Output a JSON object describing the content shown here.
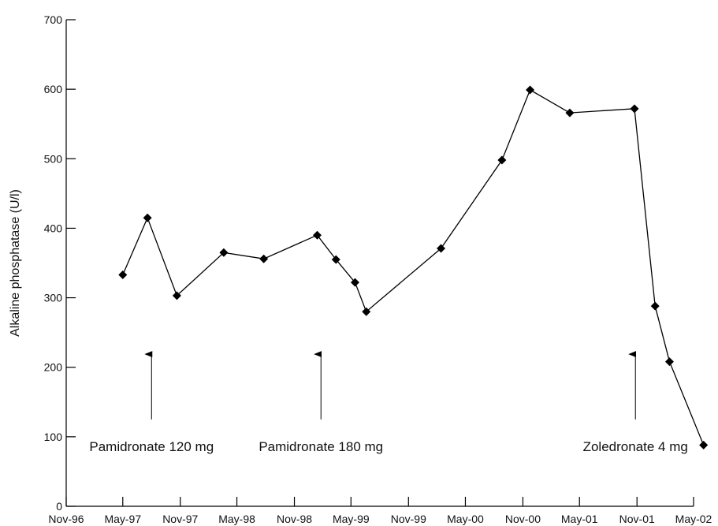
{
  "chart_data": {
    "type": "line",
    "title": "",
    "xlabel": "",
    "ylabel": "Alkaline phosphatase (U/l)",
    "ylim": [
      0,
      700
    ],
    "yticks": [
      0,
      100,
      200,
      300,
      400,
      500,
      600,
      700
    ],
    "xlim": [
      "1996-11-01",
      "2002-05-01"
    ],
    "xticks": [
      {
        "date": "1996-11-01",
        "label": "Nov-96"
      },
      {
        "date": "1997-05-01",
        "label": "May-97"
      },
      {
        "date": "1997-11-01",
        "label": "Nov-97"
      },
      {
        "date": "1998-05-01",
        "label": "May-98"
      },
      {
        "date": "1998-11-01",
        "label": "Nov-98"
      },
      {
        "date": "1999-05-01",
        "label": "May-99"
      },
      {
        "date": "1999-11-01",
        "label": "Nov-99"
      },
      {
        "date": "2000-05-01",
        "label": "May-00"
      },
      {
        "date": "2000-11-01",
        "label": "Nov-00"
      },
      {
        "date": "2001-05-01",
        "label": "May-01"
      },
      {
        "date": "2001-11-01",
        "label": "Nov-01"
      },
      {
        "date": "2002-05-01",
        "label": "May-02"
      }
    ],
    "grid": false,
    "series": [
      {
        "name": "",
        "marker": "diamond",
        "color": "#000000",
        "points": [
          {
            "x": "1997-05-01",
            "y": 333
          },
          {
            "x": "1997-07-19",
            "y": 415
          },
          {
            "x": "1997-10-21",
            "y": 303
          },
          {
            "x": "1998-03-20",
            "y": 365
          },
          {
            "x": "1998-07-26",
            "y": 356
          },
          {
            "x": "1999-01-13",
            "y": 390
          },
          {
            "x": "1999-03-14",
            "y": 355
          },
          {
            "x": "1999-05-14",
            "y": 322
          },
          {
            "x": "1999-06-19",
            "y": 280
          },
          {
            "x": "2000-02-13",
            "y": 371
          },
          {
            "x": "2000-08-26",
            "y": 498
          },
          {
            "x": "2000-11-24",
            "y": 599
          },
          {
            "x": "2001-03-31",
            "y": 566
          },
          {
            "x": "2001-10-24",
            "y": 572
          },
          {
            "x": "2001-12-29",
            "y": 288
          },
          {
            "x": "2002-02-13",
            "y": 208
          },
          {
            "x": "2002-06-02",
            "y": 88
          }
        ]
      }
    ],
    "annotations": [
      {
        "label": "Pamidronate 120 mg",
        "x": "1997-08-01",
        "arrow_from": 125,
        "arrow_to": 220
      },
      {
        "label": "Pamidronate 180 mg",
        "x": "1999-01-25",
        "arrow_from": 125,
        "arrow_to": 220
      },
      {
        "label": "Zoledronate 4 mg",
        "x": "2001-10-27",
        "arrow_from": 125,
        "arrow_to": 220
      }
    ],
    "colors": {
      "line": "#000000",
      "marker": "#000000",
      "axis": "#000000"
    }
  }
}
